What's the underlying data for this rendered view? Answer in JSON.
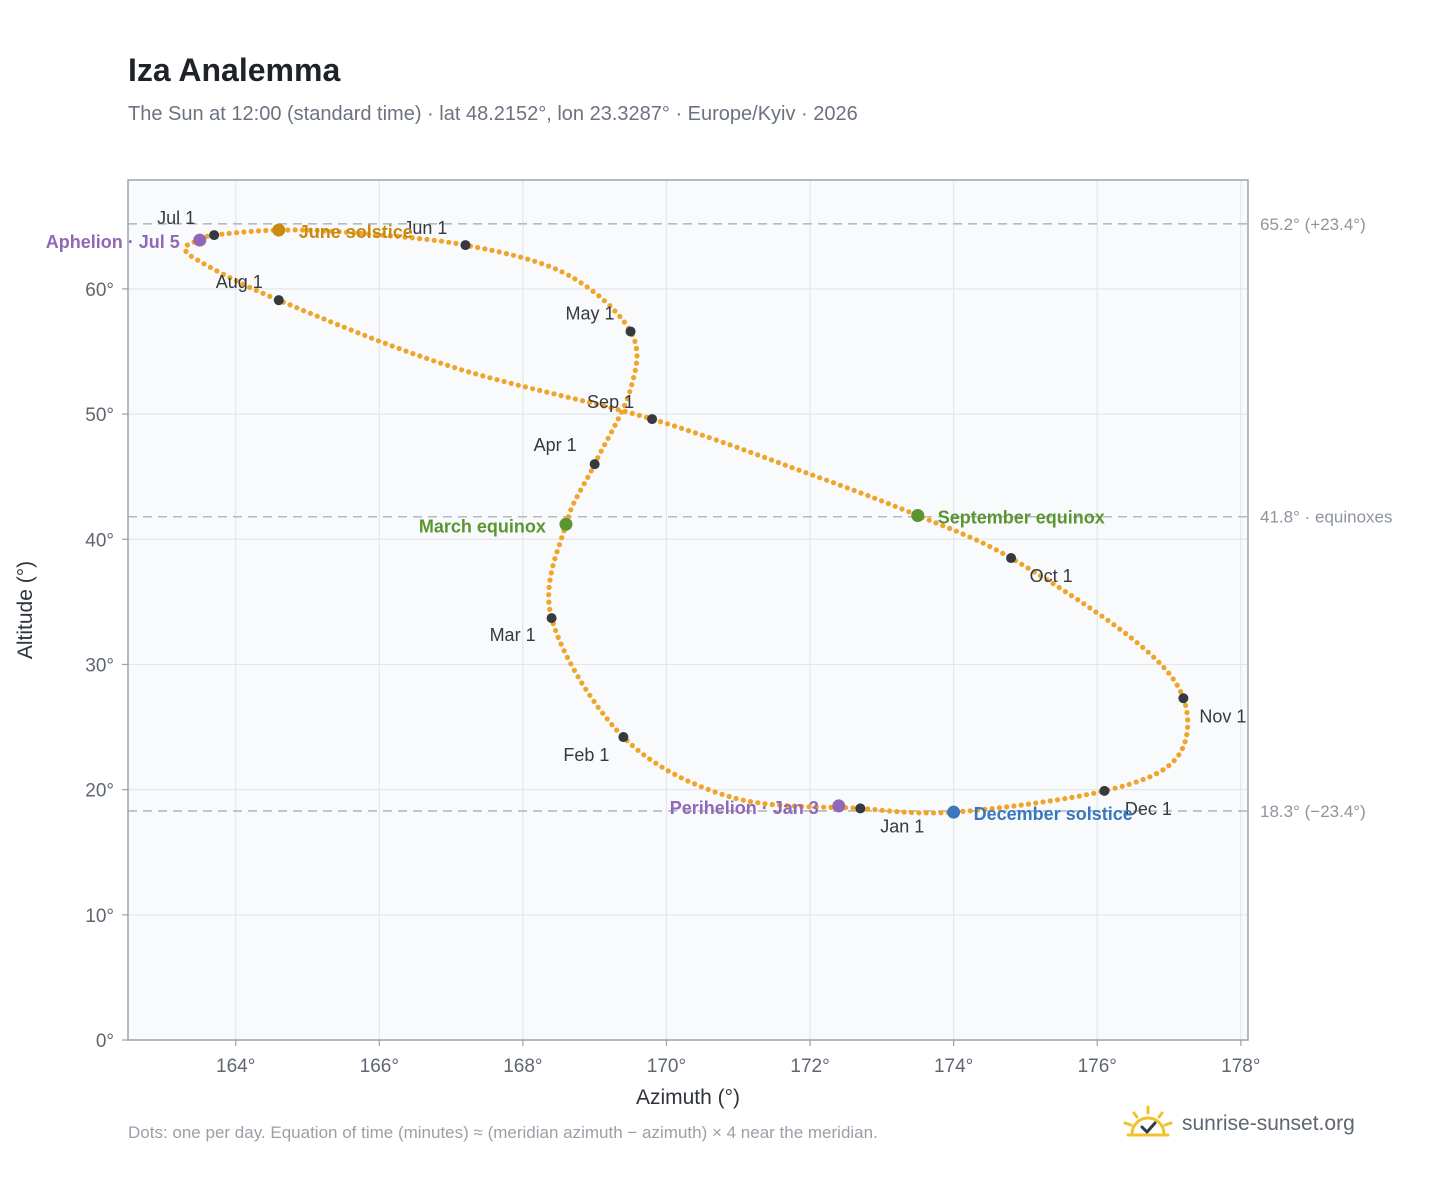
{
  "header": {
    "title": "Iza Analemma",
    "subtitle": "The Sun at 12:00 (standard time) · lat 48.2152°, lon 23.3287° · Europe/Kyiv · 2026"
  },
  "footer": {
    "note": "Dots: one per day. Equation of time (minutes) ≈ (meridian azimuth − azimuth) × 4 near the meridian.",
    "brand": "sunrise-sunset.org",
    "brand_icon": "sun-logo-icon"
  },
  "colors": {
    "path": "#f0a42a",
    "month_marker": "#353a40",
    "solstice_june": "#c98a12",
    "equinox": "#5a9532",
    "solstice_december": "#3b77be",
    "apsis": "#9168b8",
    "reference_line": "#b4bac2",
    "plot_background": "#f8fafc",
    "frame": "#9aa3ae"
  },
  "chart_data": {
    "type": "scatter",
    "title": "Iza Analemma",
    "xlabel": "Azimuth (°)",
    "ylabel": "Altitude (°)",
    "xlim": [
      162.5,
      178.1
    ],
    "ylim": [
      0,
      68.7
    ],
    "x_ticks": [
      164,
      166,
      168,
      170,
      172,
      174,
      176,
      178
    ],
    "x_tick_labels": [
      "164°",
      "166°",
      "168°",
      "170°",
      "172°",
      "174°",
      "176°",
      "178°"
    ],
    "y_ticks": [
      0,
      10,
      20,
      30,
      40,
      50,
      60
    ],
    "y_tick_labels": [
      "0°",
      "10°",
      "20°",
      "30°",
      "40°",
      "50°",
      "60°"
    ],
    "grid": true,
    "series": [
      {
        "type": "line-of-dots",
        "points": [
          [
            172.7,
            18.5
          ],
          [
            170.9,
            19.4
          ],
          [
            169.4,
            24.2
          ],
          [
            168.4,
            33.7
          ],
          [
            168.6,
            41.2
          ],
          [
            169.0,
            46.0
          ],
          [
            169.5,
            52.0
          ],
          [
            169.5,
            56.6
          ],
          [
            168.6,
            61.2
          ],
          [
            167.2,
            63.5
          ],
          [
            165.6,
            64.5
          ],
          [
            164.6,
            64.7
          ],
          [
            163.7,
            64.3
          ],
          [
            163.5,
            63.9
          ],
          [
            163.3,
            63.3
          ],
          [
            163.5,
            62.2
          ],
          [
            164.6,
            59.1
          ],
          [
            167.0,
            53.8
          ],
          [
            169.8,
            49.6
          ],
          [
            172.0,
            45.2
          ],
          [
            173.5,
            41.9
          ],
          [
            174.8,
            38.5
          ],
          [
            176.5,
            32.0
          ],
          [
            177.2,
            27.3
          ],
          [
            177.1,
            22.5
          ],
          [
            176.1,
            19.9
          ],
          [
            174.0,
            18.2
          ],
          [
            172.7,
            18.5
          ]
        ]
      }
    ],
    "month_markers": [
      {
        "label": "Jan 1",
        "x": 172.7,
        "y": 18.5
      },
      {
        "label": "Feb 1",
        "x": 169.4,
        "y": 24.2
      },
      {
        "label": "Mar 1",
        "x": 168.4,
        "y": 33.7
      },
      {
        "label": "Apr 1",
        "x": 169.0,
        "y": 46.0
      },
      {
        "label": "May 1",
        "x": 169.5,
        "y": 56.6
      },
      {
        "label": "Jun 1",
        "x": 167.2,
        "y": 63.5
      },
      {
        "label": "Jul 1",
        "x": 163.7,
        "y": 64.3
      },
      {
        "label": "Aug 1",
        "x": 164.6,
        "y": 59.1
      },
      {
        "label": "Sep 1",
        "x": 169.8,
        "y": 49.6
      },
      {
        "label": "Oct 1",
        "x": 174.8,
        "y": 38.5
      },
      {
        "label": "Nov 1",
        "x": 177.2,
        "y": 27.3
      },
      {
        "label": "Dec 1",
        "x": 176.1,
        "y": 19.9
      }
    ],
    "special_points": [
      {
        "label": "June solstice",
        "x": 164.6,
        "y": 64.7,
        "kind": "solstice_june"
      },
      {
        "label": "March equinox",
        "x": 168.6,
        "y": 41.2,
        "kind": "equinox"
      },
      {
        "label": "September equinox",
        "x": 173.5,
        "y": 41.9,
        "kind": "equinox"
      },
      {
        "label": "December solstice",
        "x": 174.0,
        "y": 18.2,
        "kind": "solstice_december"
      },
      {
        "label": "Aphelion · Jul 5",
        "x": 163.5,
        "y": 63.9,
        "kind": "apsis"
      },
      {
        "label": "Perihelion · Jan 3",
        "x": 172.4,
        "y": 18.7,
        "kind": "apsis"
      }
    ],
    "reference_lines": [
      {
        "y": 65.2,
        "label": "65.2° (+23.4°)"
      },
      {
        "y": 41.8,
        "label": "41.8° · equinoxes"
      },
      {
        "y": 18.3,
        "label": "18.3° (−23.4°)"
      }
    ]
  }
}
